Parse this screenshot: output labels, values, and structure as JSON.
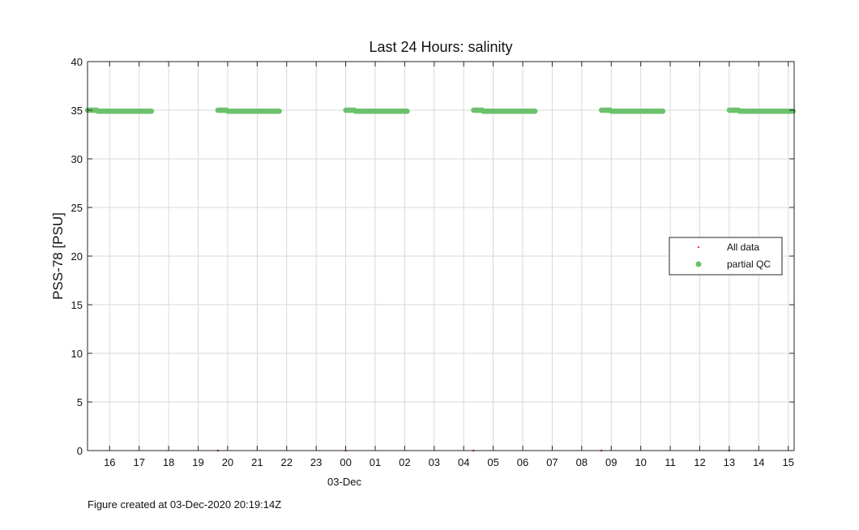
{
  "chart_data": {
    "type": "scatter",
    "title": "Last 24 Hours: salinity",
    "ylabel": "PSS-78 [PSU]",
    "xlabel": "",
    "ylim": [
      0,
      40
    ],
    "yticks": [
      0,
      5,
      10,
      15,
      20,
      25,
      30,
      35,
      40
    ],
    "xlim_hours": [
      15.25,
      39.2
    ],
    "xtick_labels": [
      "16",
      "17",
      "18",
      "19",
      "20",
      "21",
      "22",
      "23",
      "00",
      "01",
      "02",
      "03",
      "04",
      "05",
      "06",
      "07",
      "08",
      "09",
      "10",
      "11",
      "12",
      "13",
      "14",
      "15"
    ],
    "date_label": "03-Dec",
    "grid": true,
    "legend": {
      "position": "right",
      "entries": [
        "All data",
        "partial QC"
      ]
    },
    "colors": {
      "all_data": "#e8363b",
      "partial_qc": "#6cc16c",
      "grid": "#d9d9d9",
      "axis": "#262626"
    },
    "series": [
      {
        "name": "All data",
        "points": [
          {
            "x": "02-Dec 19:40",
            "y": 0
          },
          {
            "x": "03-Dec 00:00",
            "y": 0
          },
          {
            "x": "03-Dec 04:20",
            "y": 0
          },
          {
            "x": "03-Dec 08:40",
            "y": 0
          },
          {
            "x": "03-Dec 13:00",
            "y": 0
          }
        ]
      },
      {
        "name": "partial QC",
        "segments": [
          {
            "start": "02-Dec 15:15",
            "end": "02-Dec 17:25",
            "y_start": 35.0,
            "y_end": 34.9
          },
          {
            "start": "02-Dec 19:40",
            "end": "02-Dec 21:45",
            "y_start": 35.0,
            "y_end": 34.9
          },
          {
            "start": "03-Dec 00:00",
            "end": "03-Dec 02:05",
            "y_start": 35.0,
            "y_end": 34.9
          },
          {
            "start": "03-Dec 04:20",
            "end": "03-Dec 06:25",
            "y_start": 35.0,
            "y_end": 34.9
          },
          {
            "start": "03-Dec 08:40",
            "end": "03-Dec 10:45",
            "y_start": 35.0,
            "y_end": 34.9
          },
          {
            "start": "03-Dec 13:00",
            "end": "03-Dec 15:10",
            "y_start": 35.0,
            "y_end": 34.9
          }
        ]
      }
    ]
  },
  "footer": {
    "text": "Figure created at 03-Dec-2020 20:19:14Z"
  }
}
